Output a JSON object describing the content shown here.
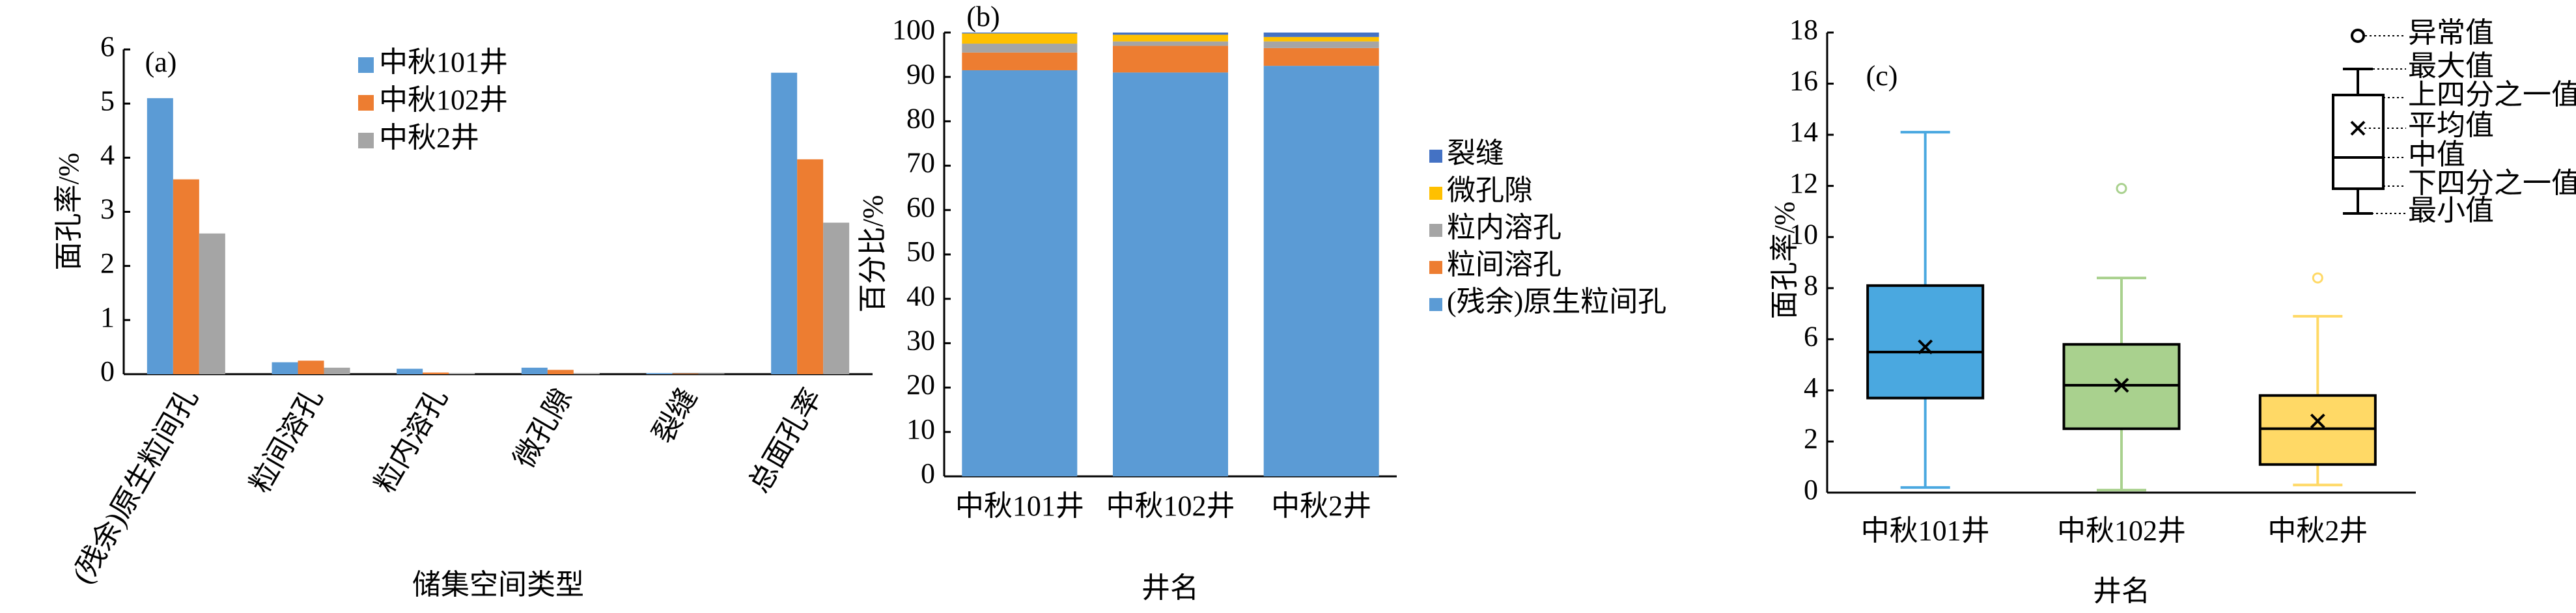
{
  "chart_data": [
    {
      "type": "bar",
      "annotation": "(a)",
      "ylabel": "面孔率/%",
      "xlabel": "储集空间类型",
      "categories": [
        "(残余)原生粒间孔",
        "粒间溶孔",
        "粒内溶孔",
        "微孔隙",
        "裂缝",
        "总面孔率"
      ],
      "series": [
        {
          "name": "中秋101井",
          "color": "#5b9bd5",
          "values": [
            5.1,
            0.22,
            0.1,
            0.12,
            0.02,
            5.57
          ]
        },
        {
          "name": "中秋102井",
          "color": "#ed7d31",
          "values": [
            3.6,
            0.25,
            0.03,
            0.08,
            0.01,
            3.97
          ]
        },
        {
          "name": "中秋2井",
          "color": "#a5a5a5",
          "values": [
            2.6,
            0.12,
            0.02,
            0.02,
            0.01,
            2.8
          ]
        }
      ],
      "ylim": [
        0,
        6
      ],
      "yticks": [
        0,
        1,
        2,
        3,
        4,
        5,
        6
      ]
    },
    {
      "type": "stacked_bar",
      "annotation": "(b)",
      "ylabel": "百分比/%",
      "xlabel": "井名",
      "categories": [
        "中秋101井",
        "中秋102井",
        "中秋2井"
      ],
      "series": [
        {
          "name": "(残余)原生粒间孔",
          "color": "#5b9bd5",
          "values": [
            91.5,
            91,
            92.5
          ]
        },
        {
          "name": "粒间溶孔",
          "color": "#ed7d31",
          "values": [
            4,
            6,
            4
          ]
        },
        {
          "name": "粒内溶孔",
          "color": "#a5a5a5",
          "values": [
            2,
            1,
            1.5
          ]
        },
        {
          "name": "微孔隙",
          "color": "#ffc000",
          "values": [
            2.3,
            1.5,
            1
          ]
        },
        {
          "name": "裂缝",
          "color": "#4472c4",
          "values": [
            0.2,
            0.5,
            1
          ]
        }
      ],
      "ylim": [
        0,
        100
      ],
      "yticks": [
        0,
        10,
        20,
        30,
        40,
        50,
        60,
        70,
        80,
        90,
        100
      ]
    },
    {
      "type": "box",
      "annotation": "(c)",
      "ylabel": "面孔率/%",
      "xlabel": "井名",
      "categories": [
        "中秋101井",
        "中秋102井",
        "中秋2井"
      ],
      "boxes": [
        {
          "color": "#4aa8e0",
          "min": 0.2,
          "q1": 3.7,
          "median": 5.5,
          "q3": 8.1,
          "max": 14.1,
          "mean": 5.7,
          "outliers": []
        },
        {
          "color": "#a9d18e",
          "min": 0.1,
          "q1": 2.5,
          "median": 4.2,
          "q3": 5.8,
          "max": 8.4,
          "mean": 4.2,
          "outliers": [
            11.9
          ]
        },
        {
          "color": "#ffd966",
          "min": 0.3,
          "q1": 1.1,
          "median": 2.5,
          "q3": 3.8,
          "max": 6.9,
          "mean": 2.8,
          "outliers": [
            8.4
          ]
        }
      ],
      "key_labels": [
        "异常值",
        "最大值",
        "上四分之一值",
        "平均值",
        "中值",
        "下四分之一值",
        "最小值"
      ],
      "ylim": [
        0,
        18
      ],
      "yticks": [
        0,
        2,
        4,
        6,
        8,
        10,
        12,
        14,
        16,
        18
      ]
    }
  ]
}
